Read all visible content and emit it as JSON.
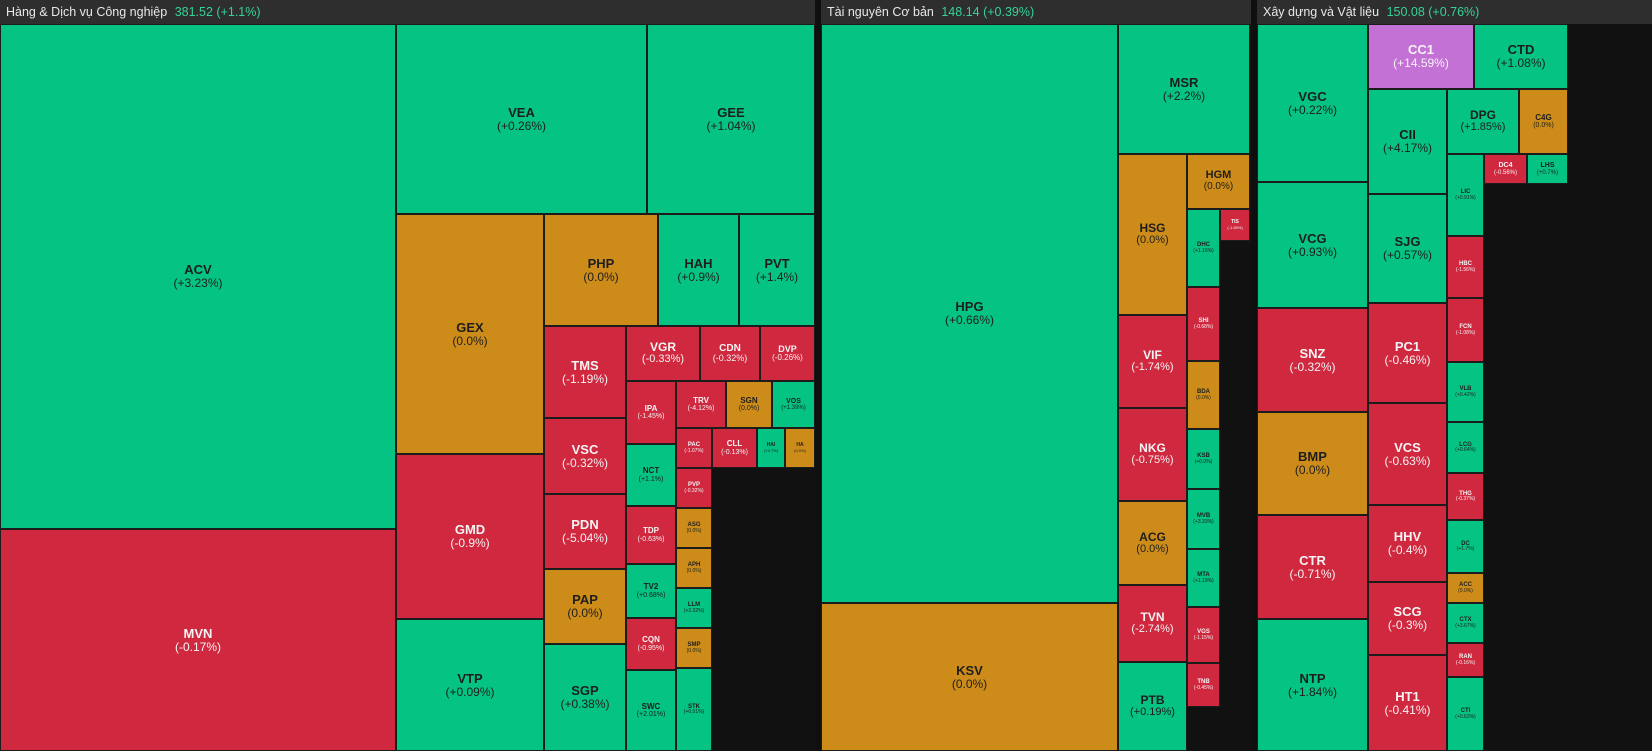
{
  "colors": {
    "up": "#05c382",
    "down": "#d0283f",
    "flat": "#cd8c1a",
    "ceiling": "#c471d6",
    "floor": "#4a87d6"
  },
  "sectors": [
    {
      "name": "Hàng & Dịch vụ Công nghiệp",
      "value": "381.52 (+1.1%)",
      "tiles": [
        {
          "s": "ACV",
          "c": "(+3.23%)",
          "t": "green"
        },
        {
          "s": "MVN",
          "c": "(-0.17%)",
          "t": "red"
        },
        {
          "s": "VEA",
          "c": "(+0.26%)",
          "t": "green"
        },
        {
          "s": "GEE",
          "c": "(+1.04%)",
          "t": "green"
        },
        {
          "s": "GEX",
          "c": "(0.0%)",
          "t": "amber"
        },
        {
          "s": "GMD",
          "c": "(-0.9%)",
          "t": "red"
        },
        {
          "s": "VTP",
          "c": "(+0.09%)",
          "t": "green"
        },
        {
          "s": "PHP",
          "c": "(0.0%)",
          "t": "amber"
        },
        {
          "s": "HAH",
          "c": "(+0.9%)",
          "t": "green"
        },
        {
          "s": "PVT",
          "c": "(+1.4%)",
          "t": "green"
        },
        {
          "s": "TMS",
          "c": "(-1.19%)",
          "t": "red"
        },
        {
          "s": "VSC",
          "c": "(-0.32%)",
          "t": "red"
        },
        {
          "s": "PDN",
          "c": "(-5.04%)",
          "t": "red"
        },
        {
          "s": "PAP",
          "c": "(0.0%)",
          "t": "amber"
        },
        {
          "s": "SGP",
          "c": "(+0.38%)",
          "t": "green"
        },
        {
          "s": "VGR",
          "c": "(-0.33%)",
          "t": "red"
        },
        {
          "s": "CDN",
          "c": "(-0.32%)",
          "t": "red"
        },
        {
          "s": "DVP",
          "c": "(-0.26%)",
          "t": "red"
        },
        {
          "s": "IPA",
          "c": "(-1.45%)",
          "t": "red"
        },
        {
          "s": "TRV",
          "c": "(-4.12%)",
          "t": "red"
        },
        {
          "s": "SGN",
          "c": "(0.0%)",
          "t": "amber"
        },
        {
          "s": "VOS",
          "c": "(+1.39%)",
          "t": "green"
        },
        {
          "s": "NCT",
          "c": "(+1.1%)",
          "t": "green"
        },
        {
          "s": "PAC",
          "c": "(-1.07%)",
          "t": "red"
        },
        {
          "s": "CLL",
          "c": "(-0.13%)",
          "t": "red"
        },
        {
          "s": "HAI",
          "c": "(+4.7%)",
          "t": "green"
        },
        {
          "s": "HA",
          "c": "(0.0%)",
          "t": "amber"
        },
        {
          "s": "TDP",
          "c": "(-0.63%)",
          "t": "red"
        },
        {
          "s": "PVP",
          "c": "(-0.32%)",
          "t": "red"
        },
        {
          "s": "ASG",
          "c": "(0.0%)",
          "t": "amber"
        },
        {
          "s": "TV2",
          "c": "(+0.68%)",
          "t": "green"
        },
        {
          "s": "APH",
          "c": "(0.0%)",
          "t": "amber"
        },
        {
          "s": "LLM",
          "c": "(+2.32%)",
          "t": "green"
        },
        {
          "s": "CQN",
          "c": "(-0.95%)",
          "t": "red"
        },
        {
          "s": "SMP",
          "c": "(0.0%)",
          "t": "amber"
        },
        {
          "s": "SWC",
          "c": "(+2.01%)",
          "t": "green"
        },
        {
          "s": "STK",
          "c": "(+0.51%)",
          "t": "green"
        }
      ]
    },
    {
      "name": "Tài nguyên Cơ bản",
      "value": "148.14 (+0.39%)",
      "tiles": [
        {
          "s": "HPG",
          "c": "(+0.66%)",
          "t": "green"
        },
        {
          "s": "KSV",
          "c": "(0.0%)",
          "t": "amber"
        },
        {
          "s": "MSR",
          "c": "(+2.2%)",
          "t": "green"
        },
        {
          "s": "HSG",
          "c": "(0.0%)",
          "t": "amber"
        },
        {
          "s": "HGM",
          "c": "(0.0%)",
          "t": "amber"
        },
        {
          "s": "VIF",
          "c": "(-1.74%)",
          "t": "red"
        },
        {
          "s": "NKG",
          "c": "(-0.75%)",
          "t": "red"
        },
        {
          "s": "ACG",
          "c": "(0.0%)",
          "t": "amber"
        },
        {
          "s": "TVN",
          "c": "(-2.74%)",
          "t": "red"
        },
        {
          "s": "PTB",
          "c": "(+0.19%)",
          "t": "green"
        },
        {
          "s": "DHC",
          "c": "(+1.16%)",
          "t": "green"
        },
        {
          "s": "SHI",
          "c": "(-0.68%)",
          "t": "red"
        },
        {
          "s": "BDA",
          "c": "(0.0%)",
          "t": "amber"
        },
        {
          "s": "KSB",
          "c": "(+0.0%)",
          "t": "green"
        },
        {
          "s": "MVB",
          "c": "(+3.33%)",
          "t": "green"
        },
        {
          "s": "MTA",
          "c": "(+1.19%)",
          "t": "green"
        },
        {
          "s": "VGS",
          "c": "(-1.15%)",
          "t": "red"
        },
        {
          "s": "TNB",
          "c": "(-0.45%)",
          "t": "red"
        },
        {
          "s": "TIS",
          "c": "(-1.65%)",
          "t": "red"
        }
      ]
    },
    {
      "name": "Xây dựng và Vật liệu",
      "value": "150.08 (+0.76%)",
      "tiles": [
        {
          "s": "VGC",
          "c": "(+0.22%)",
          "t": "green"
        },
        {
          "s": "VCG",
          "c": "(+0.93%)",
          "t": "green"
        },
        {
          "s": "SNZ",
          "c": "(-0.32%)",
          "t": "red"
        },
        {
          "s": "BMP",
          "c": "(0.0%)",
          "t": "amber"
        },
        {
          "s": "CTR",
          "c": "(-0.71%)",
          "t": "red"
        },
        {
          "s": "NTP",
          "c": "(+1.84%)",
          "t": "green"
        },
        {
          "s": "CC1",
          "c": "(+14.59%)",
          "t": "violet"
        },
        {
          "s": "CTD",
          "c": "(+1.08%)",
          "t": "green"
        },
        {
          "s": "CII",
          "c": "(+4.17%)",
          "t": "green"
        },
        {
          "s": "DPG",
          "c": "(+1.85%)",
          "t": "green"
        },
        {
          "s": "C4G",
          "c": "(0.0%)",
          "t": "amber"
        },
        {
          "s": "SJG",
          "c": "(+0.57%)",
          "t": "green"
        },
        {
          "s": "PC1",
          "c": "(-0.46%)",
          "t": "red"
        },
        {
          "s": "VCS",
          "c": "(-0.63%)",
          "t": "red"
        },
        {
          "s": "HHV",
          "c": "(-0.4%)",
          "t": "red"
        },
        {
          "s": "SCG",
          "c": "(-0.3%)",
          "t": "red"
        },
        {
          "s": "HT1",
          "c": "(-0.41%)",
          "t": "red"
        },
        {
          "s": "LIC",
          "c": "(+0.91%)",
          "t": "green"
        },
        {
          "s": "HBC",
          "c": "(-1.56%)",
          "t": "red"
        },
        {
          "s": "FCN",
          "c": "(-1.08%)",
          "t": "red"
        },
        {
          "s": "VLB",
          "c": "(+0.42%)",
          "t": "green"
        },
        {
          "s": "LCG",
          "c": "(+0.64%)",
          "t": "green"
        },
        {
          "s": "THG",
          "c": "(-0.37%)",
          "t": "red"
        },
        {
          "s": "DC",
          "c": "(+1.7%)",
          "t": "green"
        },
        {
          "s": "ACC",
          "c": "(0.0%)",
          "t": "amber"
        },
        {
          "s": "CTX",
          "c": "(+3.67%)",
          "t": "green"
        },
        {
          "s": "RAN",
          "c": "(-0.16%)",
          "t": "red"
        },
        {
          "s": "CTI",
          "c": "(+0.63%)",
          "t": "green"
        },
        {
          "s": "DC4",
          "c": "(-0.56%)",
          "t": "red"
        },
        {
          "s": "LHS",
          "c": "(+0.7%)",
          "t": "green"
        }
      ]
    }
  ]
}
